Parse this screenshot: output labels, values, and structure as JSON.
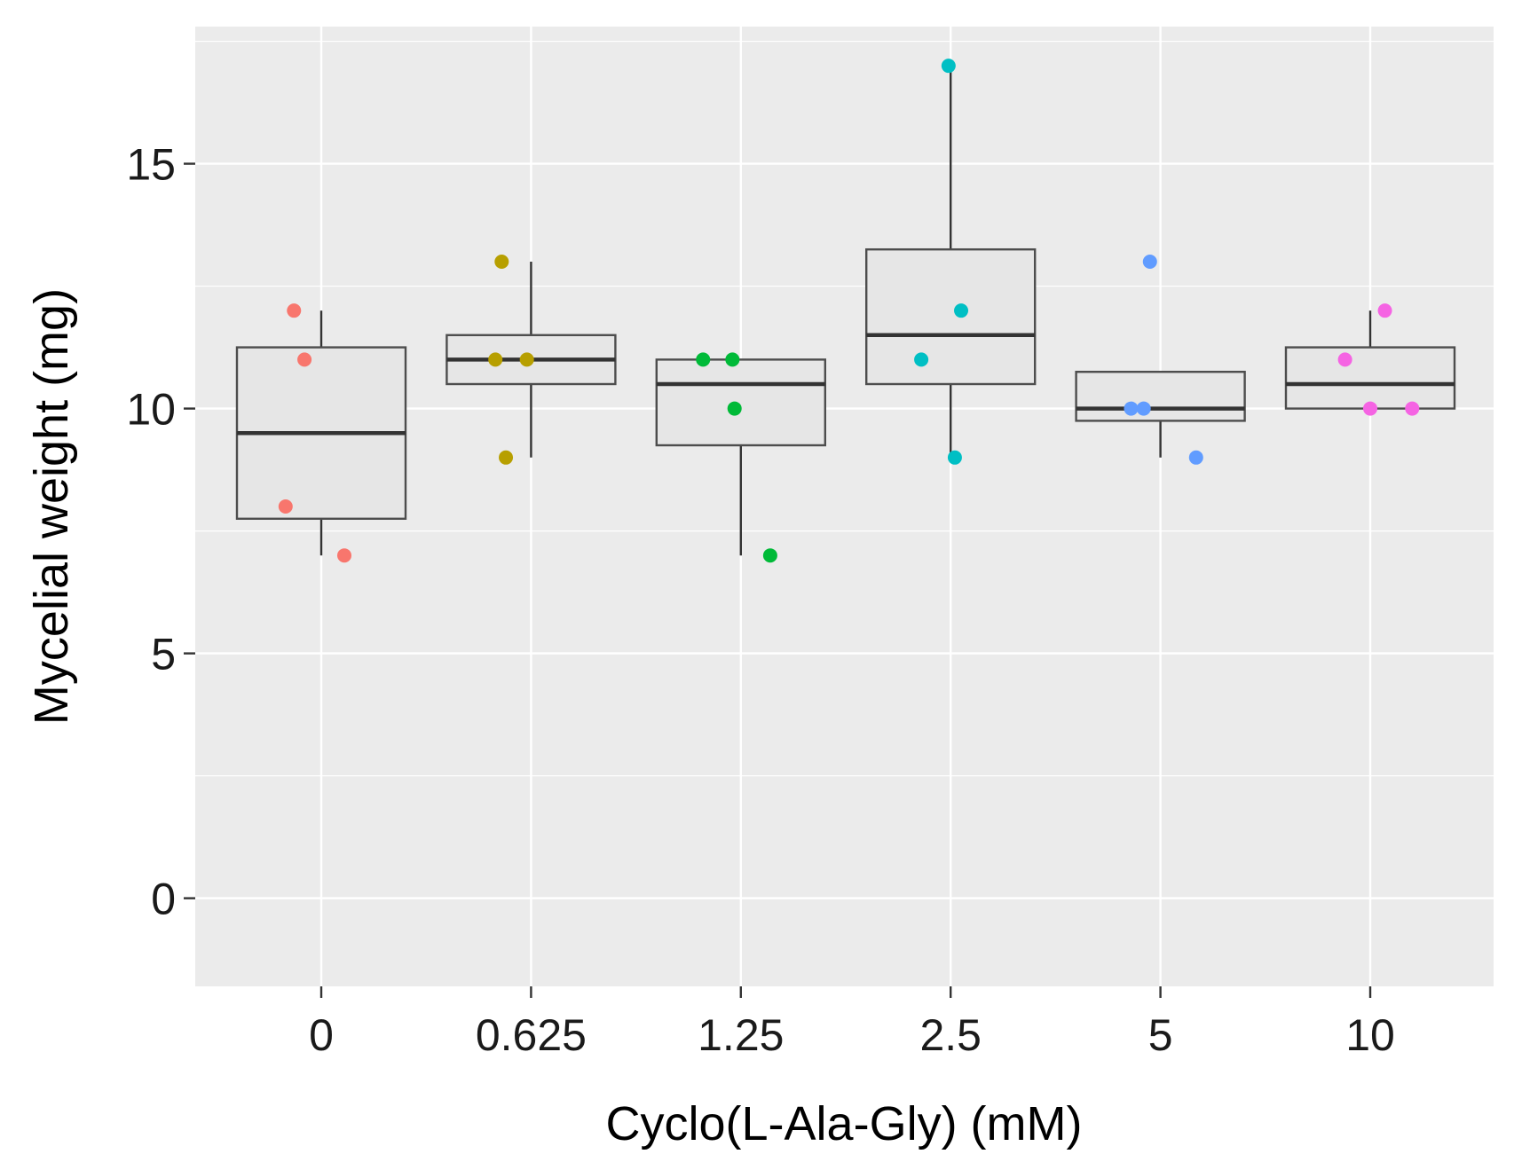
{
  "chart_data": {
    "type": "box",
    "title": "",
    "xlabel": "Cyclo(L-Ala-Gly) (mM)",
    "ylabel": "Mycelial weight (mg)",
    "ylim": [
      -1.8,
      17.8
    ],
    "yticks": [
      0,
      5,
      10,
      15
    ],
    "yminor": [
      2.5,
      7.5,
      12.5,
      17.5
    ],
    "grid": true,
    "legend": "none",
    "categories": [
      "0",
      "0.625",
      "1.25",
      "2.5",
      "5",
      "10"
    ],
    "colors": [
      "#F8766D",
      "#B79F00",
      "#00BA38",
      "#00BFC4",
      "#619CFF",
      "#F564E3"
    ],
    "boxes": [
      {
        "category": "0",
        "whisker_low": 7,
        "q1": 7.75,
        "median": 9.5,
        "q3": 11.25,
        "whisker_high": 12
      },
      {
        "category": "0.625",
        "whisker_low": 9,
        "q1": 10.5,
        "median": 11,
        "q3": 11.5,
        "whisker_high": 13
      },
      {
        "category": "1.25",
        "whisker_low": 7,
        "q1": 9.25,
        "median": 10.5,
        "q3": 11,
        "whisker_high": 11
      },
      {
        "category": "2.5",
        "whisker_low": 9,
        "q1": 10.5,
        "median": 11.5,
        "q3": 13.25,
        "whisker_high": 17
      },
      {
        "category": "5",
        "whisker_low": 9,
        "q1": 9.75,
        "median": 10,
        "q3": 10.75,
        "whisker_high": 10.75
      },
      {
        "category": "10",
        "whisker_low": 10,
        "q1": 10,
        "median": 10.5,
        "q3": 11.25,
        "whisker_high": 12
      }
    ],
    "points": [
      {
        "category": "0",
        "values": [
          12,
          11,
          8,
          7
        ],
        "jitter": [
          -0.13,
          -0.08,
          -0.17,
          0.11
        ]
      },
      {
        "category": "0.625",
        "values": [
          13,
          11,
          11,
          9
        ],
        "jitter": [
          -0.14,
          -0.17,
          -0.02,
          -0.12
        ]
      },
      {
        "category": "1.25",
        "values": [
          11,
          11,
          10,
          7
        ],
        "jitter": [
          -0.18,
          -0.04,
          -0.03,
          0.14
        ]
      },
      {
        "category": "2.5",
        "values": [
          17,
          12,
          11,
          9
        ],
        "jitter": [
          -0.01,
          0.05,
          -0.14,
          0.02
        ]
      },
      {
        "category": "5",
        "values": [
          13,
          10,
          10,
          9
        ],
        "jitter": [
          -0.05,
          -0.14,
          -0.08,
          0.17
        ]
      },
      {
        "category": "10",
        "values": [
          12,
          11,
          10,
          10
        ],
        "jitter": [
          0.07,
          -0.12,
          0.0,
          0.2
        ]
      }
    ]
  }
}
